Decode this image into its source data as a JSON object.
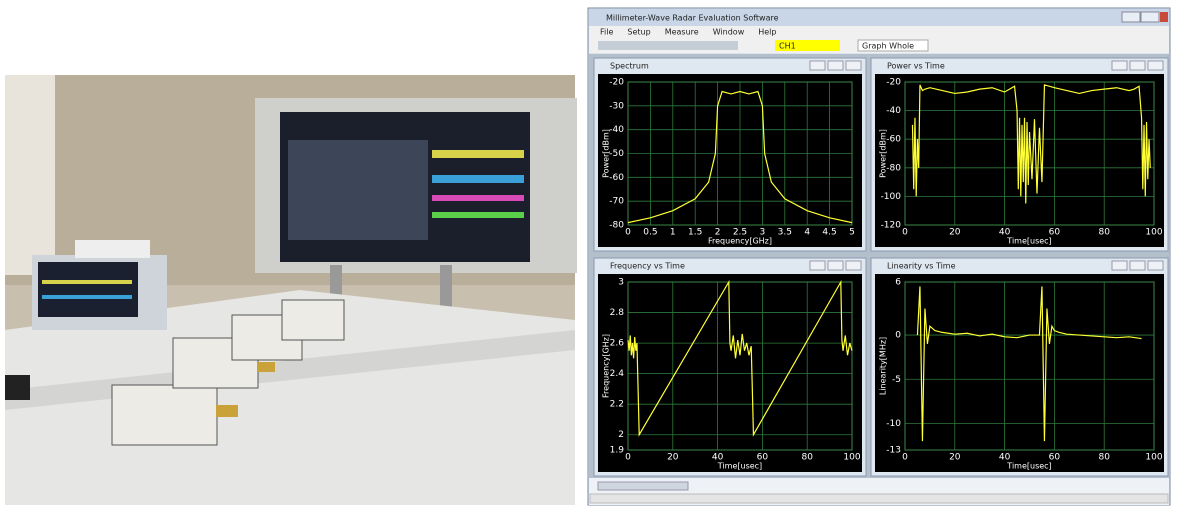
{
  "window": {
    "title": "Millimeter-Wave Radar Evaluation Software",
    "menu": [
      "File",
      "Setup",
      "Measure",
      "Window",
      "Help"
    ],
    "toolbar": {
      "channel": "CH1",
      "view": "Graph Whole"
    }
  },
  "chart_data": [
    {
      "type": "line",
      "title": "Spectrum",
      "x_label": "Frequency[GHz]",
      "y_label": "Power[dBm]",
      "color": "#ffff33",
      "grid": true,
      "xlim": [
        0,
        5
      ],
      "xticks": [
        0,
        0.5,
        1,
        1.5,
        2,
        2.5,
        3,
        3.5,
        4,
        4.5,
        5
      ],
      "ylim": [
        -80,
        -20
      ],
      "yticks": [
        -80,
        -70,
        -60,
        -50,
        -40,
        -30,
        -20
      ],
      "x": [
        0,
        0.5,
        1,
        1.5,
        1.8,
        1.95,
        2,
        2.1,
        2.3,
        2.5,
        2.7,
        2.9,
        3,
        3.05,
        3.2,
        3.5,
        4,
        4.5,
        5
      ],
      "values": [
        -79,
        -77,
        -74,
        -69,
        -62,
        -50,
        -30,
        -24,
        -25,
        -24,
        -25,
        -24,
        -30,
        -50,
        -62,
        -69,
        -74,
        -77,
        -79
      ]
    },
    {
      "type": "line",
      "title": "Power vs Time",
      "x_label": "Time[usec]",
      "y_label": "Power[dBm]",
      "color": "#ffff33",
      "grid": true,
      "xlim": [
        0,
        100
      ],
      "xticks": [
        0,
        20,
        40,
        60,
        80,
        100
      ],
      "ylim": [
        -120,
        -20
      ],
      "yticks": [
        -120,
        -100,
        -80,
        -60,
        -40,
        -20
      ],
      "x": [
        3,
        3.5,
        4,
        4.5,
        5,
        5.5,
        6,
        6.5,
        7,
        8,
        10,
        15,
        20,
        25,
        30,
        35,
        40,
        42,
        44,
        45,
        45.5,
        46,
        46.5,
        47,
        47.5,
        48,
        48.5,
        49,
        49.5,
        50,
        51,
        52,
        53,
        54,
        55,
        56,
        60,
        65,
        70,
        75,
        80,
        85,
        90,
        92,
        94,
        95,
        95.5,
        96,
        96.5,
        97,
        97.5,
        98,
        98.5
      ],
      "values": [
        -50,
        -95,
        -45,
        -100,
        -60,
        -80,
        -22,
        -24,
        -26,
        -25,
        -24,
        -26,
        -28,
        -27,
        -25,
        -24,
        -27,
        -25,
        -23,
        -40,
        -95,
        -45,
        -100,
        -50,
        -90,
        -45,
        -105,
        -48,
        -92,
        -55,
        -88,
        -46,
        -98,
        -52,
        -90,
        -22,
        -24,
        -26,
        -28,
        -26,
        -25,
        -24,
        -26,
        -25,
        -23,
        -45,
        -95,
        -50,
        -100,
        -48,
        -88,
        -60,
        -80
      ]
    },
    {
      "type": "line",
      "title": "Frequency vs Time",
      "x_label": "Time[usec]",
      "y_label": "Frequency[GHz]",
      "color": "#ffff33",
      "grid": true,
      "xlim": [
        0,
        100
      ],
      "xticks": [
        0,
        20,
        40,
        60,
        80,
        100
      ],
      "ylim": [
        1.9,
        3
      ],
      "yticks": [
        1.9,
        2,
        2.2,
        2.4,
        2.6,
        2.8,
        3
      ],
      "x": [
        0,
        0.5,
        1,
        1.5,
        2,
        2.5,
        3,
        3.5,
        4,
        4.5,
        5,
        45,
        45.5,
        46,
        47,
        48,
        49,
        50,
        51,
        52,
        53,
        54,
        55,
        55.5,
        56,
        95,
        95.5,
        96,
        97,
        98,
        99,
        100
      ],
      "values": [
        2.62,
        2.55,
        2.65,
        2.52,
        2.6,
        2.5,
        2.64,
        2.55,
        2.6,
        2.3,
        2.0,
        3.0,
        2.6,
        2.55,
        2.65,
        2.5,
        2.62,
        2.52,
        2.66,
        2.55,
        2.6,
        2.52,
        2.58,
        2.3,
        2.0,
        3.0,
        2.62,
        2.55,
        2.65,
        2.52,
        2.6,
        2.55
      ]
    },
    {
      "type": "line",
      "title": "Linearity vs Time",
      "x_label": "Time[usec]",
      "y_label": "Linearity[MHz]",
      "color": "#ffff33",
      "grid": true,
      "xlim": [
        0,
        100
      ],
      "xticks": [
        0,
        20,
        40,
        60,
        80,
        100
      ],
      "ylim": [
        -13,
        6
      ],
      "yticks": [
        -13,
        -10,
        -5,
        0,
        6
      ],
      "x": [
        5,
        6,
        7,
        8,
        9,
        10,
        12,
        15,
        20,
        25,
        30,
        35,
        40,
        45,
        50,
        54,
        55,
        56,
        57,
        58,
        59,
        60,
        62,
        65,
        70,
        75,
        80,
        85,
        90,
        95
      ],
      "values": [
        0,
        5.5,
        -12,
        3,
        -1,
        1,
        0.5,
        0.3,
        0.1,
        0.2,
        -0.1,
        0.1,
        -0.2,
        -0.3,
        0,
        0,
        5.5,
        -12,
        3,
        -1,
        1,
        0.5,
        0.3,
        0.1,
        0,
        -0.1,
        -0.2,
        -0.3,
        -0.2,
        -0.4
      ]
    }
  ]
}
